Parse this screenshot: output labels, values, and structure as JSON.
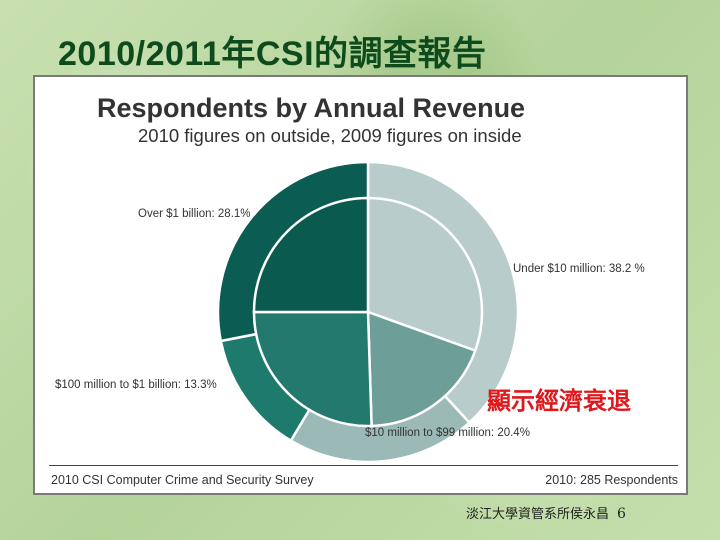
{
  "slide": {
    "title": "2010/2011年CSI的調查報告",
    "annotation": "顯示經濟衰退",
    "footer_text": "淡江大學資管系所侯永昌",
    "page_number": "6"
  },
  "chart_data": {
    "type": "pie",
    "title": "Respondents by Annual Revenue",
    "subtitle": "2010 figures on outside, 2009 figures on inside",
    "categories": [
      "Under $10 million",
      "$10 million to $99 million",
      "$100 million to $1 billion",
      "Over $1 billion"
    ],
    "series": [
      {
        "name": "2010",
        "ring": "outer",
        "values": [
          38.2,
          20.4,
          13.3,
          28.1
        ]
      },
      {
        "ring": "inner",
        "values": [
          30.5,
          19.0,
          25.5,
          25.0
        ]
      }
    ],
    "labels": [
      "Under $10 million: 38.2 %",
      "$10 million to $99 million: 20.4%",
      "$100 million to $1 billion: 13.3%",
      "Over $1 billion: 28.1%"
    ],
    "colors": {
      "outer": [
        "#b7cccb",
        "#9bb9b6",
        "#1f7a6e",
        "#0b5c52"
      ],
      "inner": [
        "#b7cccb",
        "#6e9e98",
        "#24796e",
        "#0a5a50"
      ]
    },
    "source": "2010 CSI Computer Crime and Security Survey",
    "respondents": "2010: 285 Respondents"
  }
}
